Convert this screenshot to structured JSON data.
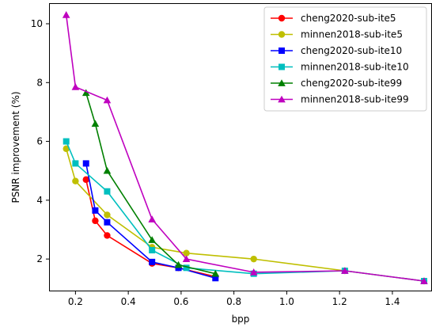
{
  "chart_data": {
    "type": "line",
    "title": "",
    "xlabel": "bpp",
    "ylabel": "PSNR improvement (%)",
    "xlim": [
      0.1,
      1.55
    ],
    "ylim": [
      0.9,
      10.7
    ],
    "xticks": [
      0.2,
      0.4,
      0.6,
      0.8,
      1.0,
      1.2,
      1.4
    ],
    "yticks": [
      2,
      4,
      6,
      8,
      10
    ],
    "xtick_labels": [
      "0.2",
      "0.4",
      "0.6",
      "0.8",
      "1.0",
      "1.2",
      "1.4"
    ],
    "ytick_labels": [
      "2",
      "4",
      "6",
      "8",
      "10"
    ],
    "grid": false,
    "legend_position": "top-right",
    "series": [
      {
        "name": "cheng2020-sub-ite5",
        "color": "#ff0000",
        "marker": "circle",
        "x": [
          0.24,
          0.275,
          0.32,
          0.49,
          0.59,
          0.73
        ],
        "y": [
          4.7,
          3.3,
          2.8,
          1.85,
          1.7,
          1.4
        ]
      },
      {
        "name": "minnen2018-sub-ite5",
        "color": "#bfbf00",
        "marker": "circle",
        "x": [
          0.165,
          0.2,
          0.32,
          0.49,
          0.62,
          0.875,
          1.22,
          1.52
        ],
        "y": [
          5.75,
          4.65,
          3.5,
          2.4,
          2.2,
          2.0,
          1.6,
          1.25
        ]
      },
      {
        "name": "cheng2020-sub-ite10",
        "color": "#0000ff",
        "marker": "square",
        "x": [
          0.24,
          0.275,
          0.32,
          0.49,
          0.59,
          0.73
        ],
        "y": [
          5.25,
          3.65,
          3.25,
          1.9,
          1.7,
          1.35
        ]
      },
      {
        "name": "minnen2018-sub-ite10",
        "color": "#00bfbf",
        "marker": "square",
        "x": [
          0.165,
          0.2,
          0.32,
          0.49,
          0.62,
          0.875,
          1.22,
          1.52
        ],
        "y": [
          6.0,
          5.25,
          4.3,
          2.3,
          1.7,
          1.5,
          1.6,
          1.25
        ]
      },
      {
        "name": "cheng2020-sub-ite99",
        "color": "#008000",
        "marker": "triangle",
        "x": [
          0.24,
          0.275,
          0.32,
          0.49,
          0.59,
          0.73
        ],
        "y": [
          7.65,
          6.6,
          5.0,
          2.65,
          1.8,
          1.5
        ]
      },
      {
        "name": "minnen2018-sub-ite99",
        "color": "#bf00bf",
        "marker": "triangle",
        "x": [
          0.165,
          0.2,
          0.32,
          0.49,
          0.62,
          0.875,
          1.22,
          1.52
        ],
        "y": [
          10.3,
          7.85,
          7.4,
          3.35,
          2.0,
          1.55,
          1.6,
          1.25
        ]
      }
    ]
  }
}
